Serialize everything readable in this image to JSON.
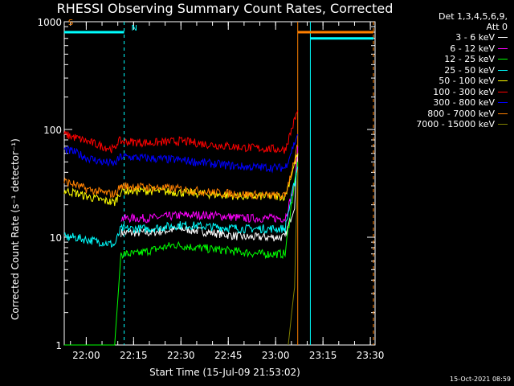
{
  "chart_data": {
    "type": "line",
    "title": "RHESSI Observing Summary Count Rates, Corrected",
    "xlabel": "Start Time (15-Jul-09 21:53:02)",
    "ylabel": "Corrected Count Rate (s⁻¹ detector⁻¹)",
    "y_scale": "log",
    "ylim": [
      1,
      1000
    ],
    "xlim": [
      "21:53:02",
      "23:31:30"
    ],
    "y_ticks": [
      {
        "value": 1,
        "label": "1"
      },
      {
        "value": 10,
        "label": "10"
      },
      {
        "value": 100,
        "label": "100"
      },
      {
        "value": 1000,
        "label": "1000"
      }
    ],
    "x_ticks": [
      {
        "value": "22:00",
        "label": "22:00"
      },
      {
        "value": "22:15",
        "label": "22:15"
      },
      {
        "value": "22:30",
        "label": "22:30"
      },
      {
        "value": "22:45",
        "label": "22:45"
      },
      {
        "value": "23:00",
        "label": "23:00"
      },
      {
        "value": "23:15",
        "label": "23:15"
      },
      {
        "value": "23:30",
        "label": "23:30"
      }
    ],
    "grid": false,
    "legend_position": "top-right",
    "legend_header": [
      "Det 1,3,4,5,6,9,",
      "Att 0"
    ],
    "series": [
      {
        "name": "3 - 6 keV",
        "color": "#ffffff",
        "x": [
          "22:11",
          "22:20",
          "22:30",
          "22:40",
          "22:50",
          "23:03",
          "23:06",
          "23:07"
        ],
        "y": [
          11,
          11,
          12,
          11,
          10,
          10,
          20,
          60
        ]
      },
      {
        "name": "6 - 12 keV",
        "color": "#ff00ff",
        "x": [
          "22:11",
          "22:20",
          "22:30",
          "22:40",
          "22:50",
          "23:03",
          "23:06",
          "23:07"
        ],
        "y": [
          15,
          15,
          16,
          16,
          15,
          15,
          30,
          70
        ]
      },
      {
        "name": "12 - 25 keV",
        "color": "#00ff00",
        "x": [
          "21:53",
          "21:56",
          "22:09",
          "22:11",
          "22:16",
          "22:20",
          "22:28",
          "22:35",
          "22:45",
          "22:55",
          "23:03",
          "23:05",
          "23:07"
        ],
        "y": [
          1,
          1,
          1,
          7,
          7,
          7.5,
          8.5,
          8,
          7.5,
          7,
          7,
          20,
          50
        ]
      },
      {
        "name": "25 - 50 keV",
        "color": "#00ffff",
        "x": [
          "21:53",
          "21:56",
          "22:00",
          "22:05",
          "22:09",
          "22:11",
          "22:20",
          "22:30",
          "22:40",
          "22:50",
          "23:03",
          "23:07"
        ],
        "y": [
          10,
          10,
          9.5,
          9,
          8.5,
          12,
          12,
          13,
          12.5,
          12,
          12,
          45
        ]
      },
      {
        "name": "50 - 100 keV",
        "color": "#ffff00",
        "x": [
          "21:53",
          "21:56",
          "22:00",
          "22:05",
          "22:09",
          "22:11",
          "22:20",
          "22:30",
          "22:40",
          "22:50",
          "23:03",
          "23:07"
        ],
        "y": [
          27,
          26,
          24,
          22,
          21,
          27,
          27,
          26,
          25,
          24,
          24,
          60
        ]
      },
      {
        "name": "100 - 300 keV",
        "color": "#ff0000",
        "x": [
          "21:53",
          "21:56",
          "22:00",
          "22:05",
          "22:09",
          "22:10",
          "22:20",
          "22:30",
          "22:40",
          "22:50",
          "23:03",
          "23:07"
        ],
        "y": [
          90,
          85,
          78,
          70,
          65,
          78,
          75,
          78,
          72,
          68,
          65,
          150
        ]
      },
      {
        "name": "300 - 800 keV",
        "color": "#0000ff",
        "x": [
          "21:53",
          "21:56",
          "22:00",
          "22:05",
          "22:09",
          "22:11",
          "22:20",
          "22:30",
          "22:40",
          "22:50",
          "23:03",
          "23:07"
        ],
        "y": [
          65,
          62,
          55,
          50,
          48,
          56,
          54,
          52,
          48,
          45,
          44,
          90
        ]
      },
      {
        "name": "800 - 7000 keV",
        "color": "#ff8000",
        "x": [
          "21:53",
          "21:56",
          "22:00",
          "22:05",
          "22:09",
          "22:11",
          "22:20",
          "22:30",
          "22:40",
          "22:50",
          "23:03",
          "23:07"
        ],
        "y": [
          33,
          31,
          28,
          26,
          25,
          30,
          29,
          28,
          26,
          25,
          24,
          70
        ]
      },
      {
        "name": "7000 - 15000 keV",
        "color": "#808000",
        "x": [
          "23:04",
          "23:06",
          "23:07"
        ],
        "y": [
          1,
          3.5,
          40
        ]
      }
    ],
    "annotations": [
      {
        "text": "S",
        "color": "#ff8000",
        "x": "21:53",
        "y": 900
      },
      {
        "text": "N",
        "color": "#00ffff",
        "x": "22:13",
        "y": 800
      }
    ],
    "state_bars": [
      {
        "color": "#00ffff",
        "x": [
          "21:53",
          "22:12"
        ],
        "y": 800
      },
      {
        "color": "#ff8000",
        "x": [
          "23:07",
          "23:31"
        ],
        "y": 800
      },
      {
        "color": "#00ffff",
        "x": [
          "23:11",
          "23:31"
        ],
        "y": 700
      }
    ],
    "vlines": [
      {
        "color": "#00ffff",
        "x": "22:12",
        "style": "dashed"
      },
      {
        "color": "#ff8000",
        "x": "23:07",
        "style": "solid"
      },
      {
        "color": "#00ffff",
        "x": "23:11",
        "style": "solid"
      },
      {
        "color": "#ff8000",
        "x": "23:31",
        "style": "dashed"
      }
    ],
    "footer": "15-Oct-2021 08:59"
  }
}
